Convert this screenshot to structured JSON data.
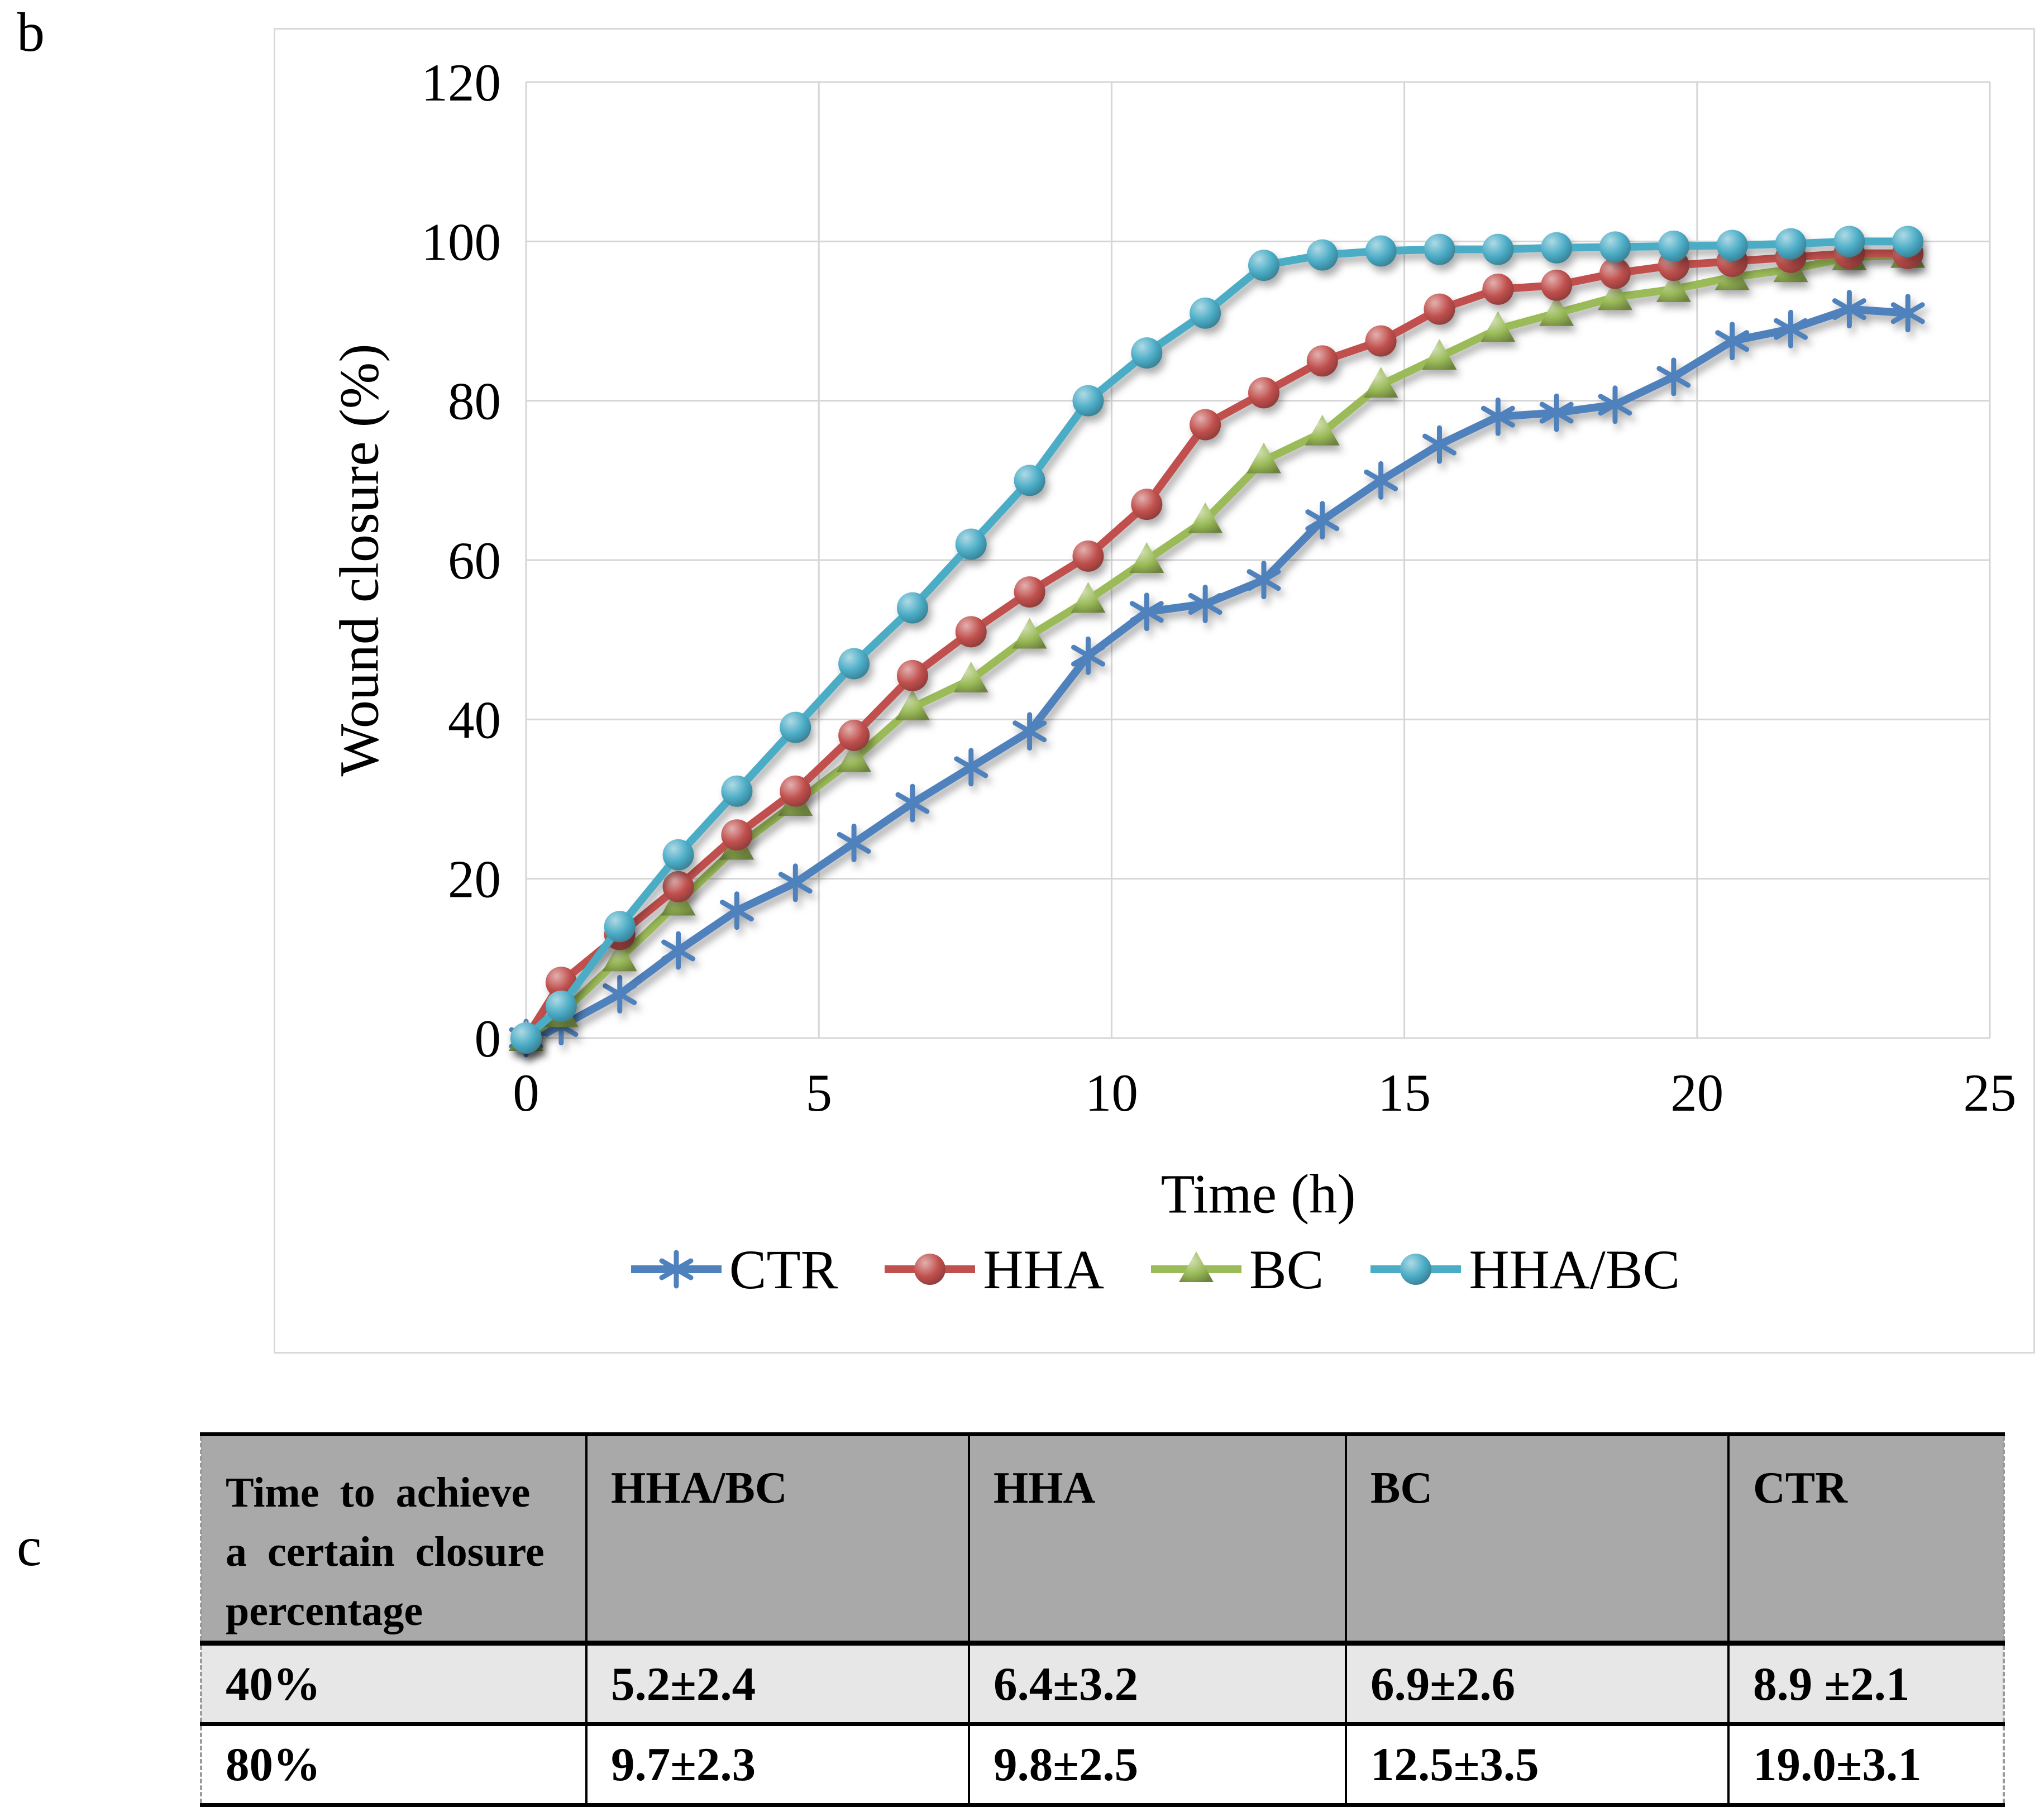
{
  "panel_b_label": "b",
  "panel_c_label": "c",
  "chart_data": {
    "type": "line",
    "title": "",
    "xlabel": "Time (h)",
    "ylabel": "Wound closure (%)",
    "xlim": [
      0,
      25
    ],
    "ylim": [
      0,
      120
    ],
    "x_ticks": [
      0,
      5,
      10,
      15,
      20,
      25
    ],
    "y_ticks": [
      0,
      20,
      40,
      60,
      80,
      100,
      120
    ],
    "grid": true,
    "legend_position": "bottom",
    "x": [
      0,
      0.6,
      1.6,
      2.6,
      3.6,
      4.6,
      5.6,
      6.6,
      7.6,
      8.6,
      9.6,
      10.6,
      11.6,
      12.6,
      13.6,
      14.6,
      15.6,
      16.6,
      17.6,
      18.6,
      19.6,
      20.6,
      21.6,
      22.6,
      23.6
    ],
    "series": [
      {
        "name": "CTR",
        "color": "#4F81BD",
        "marker": "asterisk",
        "values": [
          0,
          1.5,
          5.5,
          11,
          16,
          19.5,
          24.5,
          29.5,
          34,
          38.5,
          48,
          53.5,
          54.5,
          57.5,
          65,
          70,
          74.5,
          78,
          78.5,
          79.5,
          83,
          87.5,
          89,
          91.5,
          91
        ]
      },
      {
        "name": "HHA",
        "color": "#C0504D",
        "marker": "circle",
        "values": [
          0,
          7,
          13,
          19,
          25.5,
          31,
          38,
          45.5,
          51,
          56,
          60.5,
          67,
          77,
          81,
          85,
          87.5,
          91.5,
          94,
          94.5,
          96,
          97,
          97.5,
          98,
          98.5,
          98.5
        ]
      },
      {
        "name": "BC",
        "color": "#9BBB59",
        "marker": "triangle",
        "values": [
          0,
          3,
          10,
          17,
          24,
          29.5,
          35,
          41.5,
          45,
          50.5,
          55,
          60,
          65,
          72.5,
          76,
          82,
          85.5,
          89,
          91,
          93,
          94,
          95.5,
          96.5,
          98,
          98.3
        ]
      },
      {
        "name": "HHA/BC",
        "color": "#4BACC6",
        "marker": "circle",
        "values": [
          0,
          4,
          14,
          23,
          31,
          39,
          47,
          54,
          62,
          70,
          80,
          86,
          91,
          97,
          98.3,
          98.8,
          99,
          99,
          99.2,
          99.3,
          99.4,
          99.5,
          99.7,
          100,
          100
        ]
      }
    ]
  },
  "table": {
    "header": [
      "Time to achieve\na certain closure\npercentage",
      "HHA/BC",
      "HHA",
      "BC",
      "CTR"
    ],
    "rows": [
      [
        "40%",
        "5.2±2.4",
        "6.4±3.2",
        "6.9±2.6",
        "8.9 ±2.1"
      ],
      [
        "80%",
        "9.7±2.3",
        "9.8±2.5",
        "12.5±3.5",
        "19.0±3.1"
      ]
    ]
  }
}
